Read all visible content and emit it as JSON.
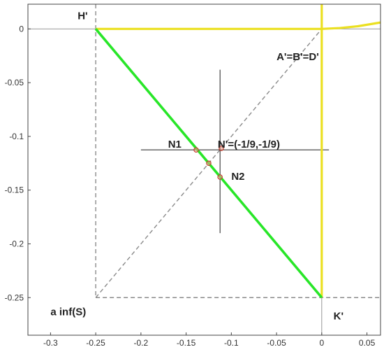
{
  "chart_data": {
    "type": "line",
    "title": "",
    "xlabel": "",
    "ylabel": "",
    "xlim": [
      -0.325,
      0.065
    ],
    "ylim": [
      -0.285,
      0.023
    ],
    "grid": false,
    "x_ticks": [
      {
        "value": -0.3,
        "label": "-0.3"
      },
      {
        "value": -0.25,
        "label": "-0.25"
      },
      {
        "value": -0.2,
        "label": "-0.2"
      },
      {
        "value": -0.15,
        "label": "-0.15"
      },
      {
        "value": -0.1,
        "label": "-0.1"
      },
      {
        "value": -0.05,
        "label": "-0.05"
      },
      {
        "value": 0,
        "label": "0"
      },
      {
        "value": 0.05,
        "label": "0.05"
      }
    ],
    "y_ticks": [
      {
        "value": 0,
        "label": "0"
      },
      {
        "value": -0.05,
        "label": "-0.05"
      },
      {
        "value": -0.1,
        "label": "-0.1"
      },
      {
        "value": -0.15,
        "label": "-0.15"
      },
      {
        "value": -0.2,
        "label": "-0.2"
      },
      {
        "value": -0.25,
        "label": "-0.25"
      }
    ],
    "series": [
      {
        "style": "yellow",
        "x": [
          -0.25,
          0
        ],
        "y": [
          0,
          0
        ]
      },
      {
        "style": "yellow",
        "x": [
          0,
          0.02,
          0.04,
          0.065
        ],
        "y": [
          0,
          0.0008,
          0.0025,
          0.006
        ]
      },
      {
        "style": "yellow",
        "x": [
          0,
          0
        ],
        "y": [
          0.023,
          -0.25
        ]
      },
      {
        "style": "green",
        "x": [
          -0.25,
          0
        ],
        "y": [
          0,
          -0.25
        ]
      },
      {
        "style": "gray-dashed",
        "x": [
          -0.25,
          0
        ],
        "y": [
          -0.25,
          0
        ]
      },
      {
        "style": "gray-dashed",
        "x": [
          -0.25,
          -0.25
        ],
        "y": [
          0.023,
          -0.25
        ]
      },
      {
        "style": "gray-dashed",
        "x": [
          -0.25,
          0.065
        ],
        "y": [
          -0.25,
          -0.25
        ]
      },
      {
        "style": "black-thin",
        "x": [
          -0.2,
          0.008
        ],
        "y": [
          -0.1125,
          -0.1125
        ]
      },
      {
        "style": "black-thin",
        "x": [
          -0.1125,
          -0.1125
        ],
        "y": [
          -0.038,
          -0.19
        ]
      },
      {
        "style": "gray-thin",
        "x": [
          -0.325,
          0.065
        ],
        "y": [
          0,
          0
        ]
      },
      {
        "style": "gray-thin",
        "x": [
          0,
          0
        ],
        "y": [
          0.023,
          -0.285
        ]
      }
    ],
    "points": [
      {
        "x": -0.1389,
        "y": -0.1126
      },
      {
        "x": -0.1111,
        "y": -0.1111
      },
      {
        "x": -0.125,
        "y": -0.125
      },
      {
        "x": -0.1125,
        "y": -0.1378
      }
    ],
    "annotations": [
      {
        "text": "H'",
        "x": -0.27,
        "y": 0.009
      },
      {
        "text": "A'=B'=D'",
        "x": -0.05,
        "y": -0.029
      },
      {
        "text": "N1",
        "x": -0.17,
        "y": -0.1105
      },
      {
        "text": "N'=(-1/9,-1/9)",
        "x": -0.115,
        "y": -0.1105
      },
      {
        "text": "N2",
        "x": -0.1,
        "y": -0.1405
      },
      {
        "text": "a inf(S)",
        "x": -0.3,
        "y": -0.2665
      },
      {
        "text": "K'",
        "x": 0.013,
        "y": -0.2705
      }
    ],
    "colors": {
      "yellow": "#ebe021",
      "green": "#28e628",
      "gray": "#8a8a8a",
      "black": "#1e1e1e",
      "point_stroke": "#c0392b"
    }
  }
}
